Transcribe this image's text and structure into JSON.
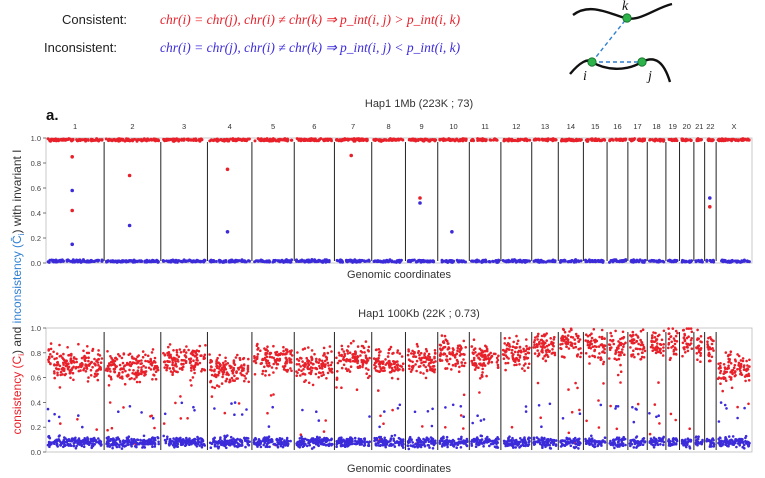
{
  "legend": {
    "consistent_label": "Consistent:",
    "inconsistent_label": "Inconsistent:",
    "consistent_formula": "chr(i) = chr(j), chr(i) ≠ chr(k) ⇒ p_int(i, j) > p_int(i, k)",
    "inconsistent_formula": "chr(i) = chr(j), chr(i) ≠ chr(k) ⇒ p_int(i, j) < p_int(i, k)",
    "consistent_color": "#e8202a",
    "inconsistent_color": "#3b2bd9"
  },
  "diagram": {
    "node_k": "k",
    "node_i": "i",
    "node_j": "j",
    "node_color": "#2db34a",
    "link_color": "#2f7fd1"
  },
  "panel_label": "a.",
  "y_axis_label": {
    "part1": "consistency (C",
    "sub1": "i",
    "part2": ") and ",
    "part3": "inconsistency (C̄",
    "sub2": "i",
    "part4": ") with invariant I"
  },
  "chart_data": [
    {
      "type": "scatter",
      "title": "Hap1 1Mb (223K ; 73)",
      "xlabel": "Genomic coordinates",
      "ylabel": "consistency (C_i) and inconsistency (C̄_i) with invariant I",
      "ylim": [
        0,
        1
      ],
      "yticks": [
        "0.0",
        "0.2",
        "0.4",
        "0.6",
        "0.8",
        "1.0"
      ],
      "chromosomes": [
        "1",
        "2",
        "3",
        "4",
        "5",
        "6",
        "7",
        "8",
        "9",
        "10",
        "11",
        "12",
        "13",
        "14",
        "15",
        "16",
        "17",
        "18",
        "19",
        "20",
        "21",
        "22",
        "X"
      ],
      "chromosome_fractions": [
        0.081,
        0.079,
        0.065,
        0.062,
        0.059,
        0.056,
        0.052,
        0.047,
        0.045,
        0.044,
        0.044,
        0.043,
        0.037,
        0.035,
        0.033,
        0.029,
        0.027,
        0.026,
        0.019,
        0.02,
        0.015,
        0.016,
        0.05
      ],
      "series": [
        {
          "name": "consistency",
          "color": "#e8202a",
          "typical": 0.985,
          "spread": 0.01
        },
        {
          "name": "inconsistency",
          "color": "#3b2bd9",
          "typical": 0.015,
          "spread": 0.01
        }
      ],
      "outliers": [
        {
          "series": "consistency",
          "chr": "1",
          "y": 0.42
        },
        {
          "series": "consistency",
          "chr": "1",
          "y": 0.85
        },
        {
          "series": "consistency",
          "chr": "2",
          "y": 0.7
        },
        {
          "series": "consistency",
          "chr": "4",
          "y": 0.75
        },
        {
          "series": "consistency",
          "chr": "7",
          "y": 0.86
        },
        {
          "series": "consistency",
          "chr": "9",
          "y": 0.52
        },
        {
          "series": "consistency",
          "chr": "22",
          "y": 0.45
        },
        {
          "series": "inconsistency",
          "chr": "1",
          "y": 0.58
        },
        {
          "series": "inconsistency",
          "chr": "1",
          "y": 0.15
        },
        {
          "series": "inconsistency",
          "chr": "2",
          "y": 0.3
        },
        {
          "series": "inconsistency",
          "chr": "4",
          "y": 0.25
        },
        {
          "series": "inconsistency",
          "chr": "9",
          "y": 0.48
        },
        {
          "series": "inconsistency",
          "chr": "10",
          "y": 0.25
        },
        {
          "series": "inconsistency",
          "chr": "22",
          "y": 0.52
        }
      ]
    },
    {
      "type": "scatter",
      "title": "Hap1 100Kb (22K ; 0.73)",
      "xlabel": "Genomic coordinates",
      "ylabel": "consistency (C_i) and inconsistency (C̄_i) with invariant I",
      "ylim": [
        0,
        1
      ],
      "yticks": [
        "0.0",
        "0.2",
        "0.4",
        "0.6",
        "0.8",
        "1.0"
      ],
      "chromosomes": [
        "1",
        "2",
        "3",
        "4",
        "5",
        "6",
        "7",
        "8",
        "9",
        "10",
        "11",
        "12",
        "13",
        "14",
        "15",
        "16",
        "17",
        "18",
        "19",
        "20",
        "21",
        "22",
        "X"
      ],
      "chromosome_fractions": [
        0.081,
        0.079,
        0.065,
        0.062,
        0.059,
        0.056,
        0.052,
        0.047,
        0.045,
        0.044,
        0.044,
        0.043,
        0.037,
        0.035,
        0.033,
        0.029,
        0.027,
        0.026,
        0.019,
        0.02,
        0.015,
        0.016,
        0.05
      ],
      "series": [
        {
          "name": "consistency",
          "color": "#e8202a",
          "typical": 0.72,
          "spread": 0.12
        },
        {
          "name": "inconsistency",
          "color": "#3b2bd9",
          "typical": 0.08,
          "spread": 0.04
        }
      ],
      "consistency_by_chromosome": [
        0.72,
        0.68,
        0.74,
        0.66,
        0.75,
        0.7,
        0.76,
        0.72,
        0.74,
        0.8,
        0.75,
        0.78,
        0.85,
        0.88,
        0.86,
        0.84,
        0.88,
        0.86,
        0.9,
        0.9,
        0.86,
        0.82,
        0.66
      ],
      "outliers": []
    }
  ]
}
